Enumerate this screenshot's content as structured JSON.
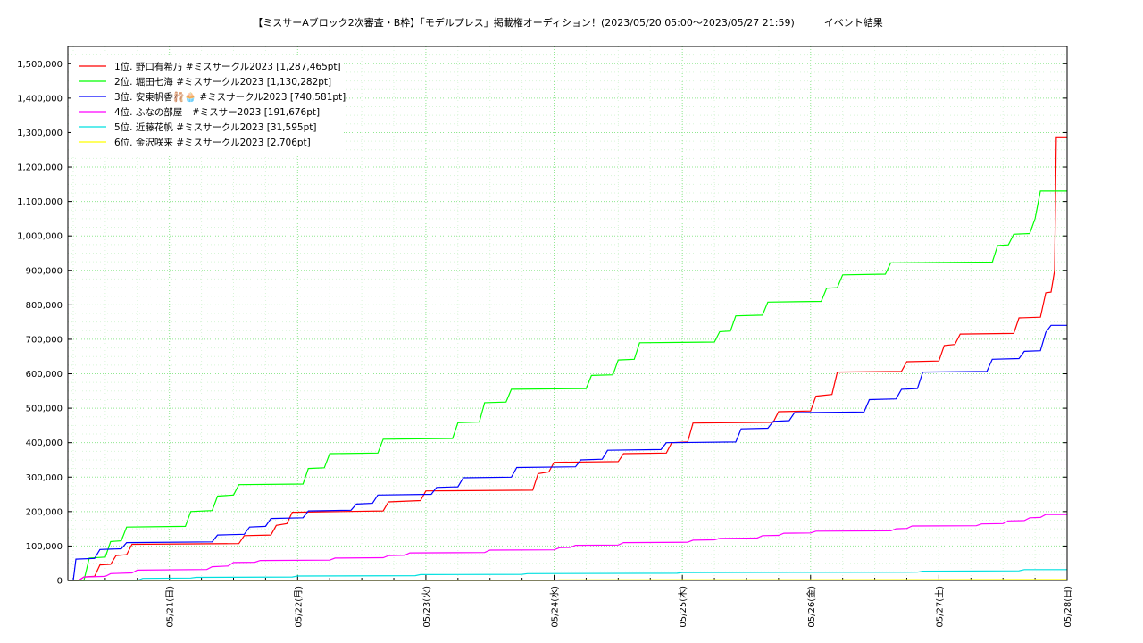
{
  "chart_data": {
    "type": "line",
    "title": "【ミスサーAブロック2次審査・B枠】「モデルプレス」掲載権オーディション！(2023/05/20 05:00〜2023/05/27 21:59)　　　イベント結果",
    "xlabel": "",
    "ylabel": "",
    "x_range": [
      "2023-05-20 05:00",
      "2023-05-28 00:00"
    ],
    "ylim": [
      0,
      1550000
    ],
    "y_ticks": [
      0,
      100000,
      200000,
      300000,
      400000,
      500000,
      600000,
      700000,
      800000,
      900000,
      1000000,
      1100000,
      1200000,
      1300000,
      1400000,
      1500000
    ],
    "y_tick_labels": [
      "0",
      "100,000",
      "200,000",
      "300,000",
      "400,000",
      "500,000",
      "600,000",
      "700,000",
      "800,000",
      "900,000",
      "1,000,000",
      "1,100,000",
      "1,200,000",
      "1,300,000",
      "1,400,000",
      "1,500,000"
    ],
    "x_ticks": [
      "2023-05-21",
      "2023-05-22",
      "2023-05-23",
      "2023-05-24",
      "2023-05-25",
      "2023-05-26",
      "2023-05-27",
      "2023-05-28"
    ],
    "x_tick_labels": [
      "05/21(日)",
      "05/22(月)",
      "05/23(火)",
      "05/24(水)",
      "05/25(木)",
      "05/26(金)",
      "05/27(土)",
      "05/28(日)"
    ],
    "grid": true,
    "legend_position": "top-left",
    "series": [
      {
        "name": "1位. 野口有希乃 #ミスサークル2023 [1,287,465pt]",
        "color": "#ff0000",
        "points": [
          [
            "2023-05-20 05:00",
            0
          ],
          [
            "2023-05-20 07:00",
            0
          ],
          [
            "2023-05-20 08:00",
            10000
          ],
          [
            "2023-05-20 10:00",
            12000
          ],
          [
            "2023-05-20 11:00",
            45000
          ],
          [
            "2023-05-20 13:00",
            47000
          ],
          [
            "2023-05-20 14:00",
            72000
          ],
          [
            "2023-05-20 16:00",
            75000
          ],
          [
            "2023-05-20 17:00",
            105000
          ],
          [
            "2023-05-21 13:00",
            107000
          ],
          [
            "2023-05-21 14:00",
            130000
          ],
          [
            "2023-05-21 19:00",
            132000
          ],
          [
            "2023-05-21 20:00",
            160000
          ],
          [
            "2023-05-21 22:00",
            165000
          ],
          [
            "2023-05-21 23:00",
            198000
          ],
          [
            "2023-05-22 16:00",
            202000
          ],
          [
            "2023-05-22 17:00",
            228000
          ],
          [
            "2023-05-22 23:00",
            232000
          ],
          [
            "2023-05-23 00:00",
            260000
          ],
          [
            "2023-05-23 20:00",
            262000
          ],
          [
            "2023-05-23 21:00",
            310000
          ],
          [
            "2023-05-23 23:00",
            315000
          ],
          [
            "2023-05-24 00:00",
            343000
          ],
          [
            "2023-05-24 12:00",
            345000
          ],
          [
            "2023-05-24 13:00",
            368000
          ],
          [
            "2023-05-24 21:00",
            370000
          ],
          [
            "2023-05-24 22:00",
            400000
          ],
          [
            "2023-05-25 01:00",
            402000
          ],
          [
            "2023-05-25 02:00",
            457000
          ],
          [
            "2023-05-25 17:00",
            459000
          ],
          [
            "2023-05-25 18:00",
            490000
          ],
          [
            "2023-05-26 00:00",
            492000
          ],
          [
            "2023-05-26 01:00",
            535000
          ],
          [
            "2023-05-26 04:00",
            540000
          ],
          [
            "2023-05-26 05:00",
            605000
          ],
          [
            "2023-05-26 17:00",
            607000
          ],
          [
            "2023-05-26 18:00",
            635000
          ],
          [
            "2023-05-27 00:00",
            637000
          ],
          [
            "2023-05-27 01:00",
            682000
          ],
          [
            "2023-05-27 03:00",
            685000
          ],
          [
            "2023-05-27 04:00",
            715000
          ],
          [
            "2023-05-27 14:00",
            717000
          ],
          [
            "2023-05-27 15:00",
            762000
          ],
          [
            "2023-05-27 19:00",
            764000
          ],
          [
            "2023-05-27 20:00",
            835000
          ],
          [
            "2023-05-27 21:00",
            837000
          ],
          [
            "2023-05-27 21:40",
            900000
          ],
          [
            "2023-05-27 21:59",
            1287465
          ],
          [
            "2023-05-28 00:00",
            1287465
          ]
        ]
      },
      {
        "name": "2位. 堀田七海 #ミスサークル2023 [1,130,282pt]",
        "color": "#00ff00",
        "points": [
          [
            "2023-05-20 05:00",
            0
          ],
          [
            "2023-05-20 08:00",
            0
          ],
          [
            "2023-05-20 09:00",
            65000
          ],
          [
            "2023-05-20 12:00",
            68000
          ],
          [
            "2023-05-20 13:00",
            113000
          ],
          [
            "2023-05-20 15:00",
            115000
          ],
          [
            "2023-05-20 16:00",
            155000
          ],
          [
            "2023-05-21 03:00",
            157000
          ],
          [
            "2023-05-21 04:00",
            200000
          ],
          [
            "2023-05-21 08:00",
            203000
          ],
          [
            "2023-05-21 09:00",
            245000
          ],
          [
            "2023-05-21 12:00",
            248000
          ],
          [
            "2023-05-21 13:00",
            278000
          ],
          [
            "2023-05-22 01:00",
            280000
          ],
          [
            "2023-05-22 02:00",
            325000
          ],
          [
            "2023-05-22 05:00",
            327000
          ],
          [
            "2023-05-22 06:00",
            368000
          ],
          [
            "2023-05-22 15:00",
            370000
          ],
          [
            "2023-05-22 16:00",
            410000
          ],
          [
            "2023-05-23 05:00",
            412000
          ],
          [
            "2023-05-23 06:00",
            458000
          ],
          [
            "2023-05-23 10:00",
            460000
          ],
          [
            "2023-05-23 11:00",
            516000
          ],
          [
            "2023-05-23 15:00",
            518000
          ],
          [
            "2023-05-23 16:00",
            555000
          ],
          [
            "2023-05-24 06:00",
            557000
          ],
          [
            "2023-05-24 07:00",
            595000
          ],
          [
            "2023-05-24 11:00",
            597000
          ],
          [
            "2023-05-24 12:00",
            640000
          ],
          [
            "2023-05-24 15:00",
            642000
          ],
          [
            "2023-05-24 16:00",
            690000
          ],
          [
            "2023-05-25 06:00",
            692000
          ],
          [
            "2023-05-25 07:00",
            722000
          ],
          [
            "2023-05-25 09:00",
            724000
          ],
          [
            "2023-05-25 10:00",
            768000
          ],
          [
            "2023-05-25 15:00",
            770000
          ],
          [
            "2023-05-25 16:00",
            808000
          ],
          [
            "2023-05-26 02:00",
            810000
          ],
          [
            "2023-05-26 03:00",
            848000
          ],
          [
            "2023-05-26 05:00",
            850000
          ],
          [
            "2023-05-26 06:00",
            887000
          ],
          [
            "2023-05-26 14:00",
            889000
          ],
          [
            "2023-05-26 15:00",
            922000
          ],
          [
            "2023-05-27 10:00",
            924000
          ],
          [
            "2023-05-27 11:00",
            972000
          ],
          [
            "2023-05-27 13:00",
            974000
          ],
          [
            "2023-05-27 14:00",
            1005000
          ],
          [
            "2023-05-27 17:00",
            1007000
          ],
          [
            "2023-05-27 18:00",
            1050000
          ],
          [
            "2023-05-27 19:00",
            1130282
          ],
          [
            "2023-05-28 00:00",
            1130282
          ]
        ]
      },
      {
        "name": "3位. 安東帆香🩰🧁 #ミスサークル2023 [740,581pt]",
        "color": "#0000ff",
        "points": [
          [
            "2023-05-20 05:00",
            0
          ],
          [
            "2023-05-20 06:00",
            0
          ],
          [
            "2023-05-20 06:30",
            62000
          ],
          [
            "2023-05-20 10:00",
            64000
          ],
          [
            "2023-05-20 11:00",
            90000
          ],
          [
            "2023-05-20 15:00",
            92000
          ],
          [
            "2023-05-20 16:00",
            110000
          ],
          [
            "2023-05-21 08:00",
            112000
          ],
          [
            "2023-05-21 09:00",
            132000
          ],
          [
            "2023-05-21 14:00",
            134000
          ],
          [
            "2023-05-21 15:00",
            155000
          ],
          [
            "2023-05-21 18:00",
            157000
          ],
          [
            "2023-05-21 19:00",
            180000
          ],
          [
            "2023-05-22 01:00",
            182000
          ],
          [
            "2023-05-22 02:00",
            202000
          ],
          [
            "2023-05-22 10:00",
            204000
          ],
          [
            "2023-05-22 11:00",
            222000
          ],
          [
            "2023-05-22 14:00",
            224000
          ],
          [
            "2023-05-22 15:00",
            248000
          ],
          [
            "2023-05-23 01:00",
            250000
          ],
          [
            "2023-05-23 02:00",
            270000
          ],
          [
            "2023-05-23 06:00",
            272000
          ],
          [
            "2023-05-23 07:00",
            298000
          ],
          [
            "2023-05-23 16:00",
            300000
          ],
          [
            "2023-05-23 17:00",
            328000
          ],
          [
            "2023-05-24 04:00",
            330000
          ],
          [
            "2023-05-24 05:00",
            350000
          ],
          [
            "2023-05-24 09:00",
            352000
          ],
          [
            "2023-05-24 10:00",
            378000
          ],
          [
            "2023-05-24 20:00",
            380000
          ],
          [
            "2023-05-24 21:00",
            400000
          ],
          [
            "2023-05-25 10:00",
            402000
          ],
          [
            "2023-05-25 11:00",
            440000
          ],
          [
            "2023-05-25 16:00",
            442000
          ],
          [
            "2023-05-25 17:00",
            462000
          ],
          [
            "2023-05-25 20:00",
            464000
          ],
          [
            "2023-05-25 21:00",
            487000
          ],
          [
            "2023-05-26 10:00",
            489000
          ],
          [
            "2023-05-26 11:00",
            525000
          ],
          [
            "2023-05-26 16:00",
            527000
          ],
          [
            "2023-05-26 17:00",
            555000
          ],
          [
            "2023-05-26 20:00",
            557000
          ],
          [
            "2023-05-26 21:00",
            605000
          ],
          [
            "2023-05-27 09:00",
            607000
          ],
          [
            "2023-05-27 10:00",
            642000
          ],
          [
            "2023-05-27 15:00",
            644000
          ],
          [
            "2023-05-27 16:00",
            665000
          ],
          [
            "2023-05-27 19:00",
            667000
          ],
          [
            "2023-05-27 20:00",
            720000
          ],
          [
            "2023-05-27 21:00",
            740581
          ],
          [
            "2023-05-28 00:00",
            740581
          ]
        ]
      },
      {
        "name": "4位. ふなの部屋　#ミスサー2023 [191,676pt]",
        "color": "#ff00ff",
        "points": [
          [
            "2023-05-20 05:00",
            0
          ],
          [
            "2023-05-20 07:00",
            0
          ],
          [
            "2023-05-20 08:00",
            10000
          ],
          [
            "2023-05-20 12:00",
            12000
          ],
          [
            "2023-05-20 13:00",
            20000
          ],
          [
            "2023-05-20 17:00",
            22000
          ],
          [
            "2023-05-20 18:00",
            30000
          ],
          [
            "2023-05-21 07:00",
            32000
          ],
          [
            "2023-05-21 08:00",
            40000
          ],
          [
            "2023-05-21 11:00",
            42000
          ],
          [
            "2023-05-21 12:00",
            52000
          ],
          [
            "2023-05-21 16:00",
            53000
          ],
          [
            "2023-05-21 17:00",
            58000
          ],
          [
            "2023-05-22 06:00",
            59000
          ],
          [
            "2023-05-22 07:00",
            65000
          ],
          [
            "2023-05-22 16:00",
            66000
          ],
          [
            "2023-05-22 17:00",
            72000
          ],
          [
            "2023-05-22 20:00",
            73000
          ],
          [
            "2023-05-22 21:00",
            80000
          ],
          [
            "2023-05-23 11:00",
            81000
          ],
          [
            "2023-05-23 12:00",
            88000
          ],
          [
            "2023-05-24 00:00",
            89000
          ],
          [
            "2023-05-24 01:00",
            95000
          ],
          [
            "2023-05-24 03:00",
            96000
          ],
          [
            "2023-05-24 04:00",
            102000
          ],
          [
            "2023-05-24 12:00",
            103000
          ],
          [
            "2023-05-24 13:00",
            110000
          ],
          [
            "2023-05-25 01:00",
            111000
          ],
          [
            "2023-05-25 02:00",
            117000
          ],
          [
            "2023-05-25 06:00",
            118000
          ],
          [
            "2023-05-25 07:00",
            122000
          ],
          [
            "2023-05-25 14:00",
            123000
          ],
          [
            "2023-05-25 15:00",
            130000
          ],
          [
            "2023-05-25 18:00",
            131000
          ],
          [
            "2023-05-25 19:00",
            137000
          ],
          [
            "2023-05-26 00:00",
            138000
          ],
          [
            "2023-05-26 01:00",
            143000
          ],
          [
            "2023-05-26 15:00",
            144000
          ],
          [
            "2023-05-26 16:00",
            150000
          ],
          [
            "2023-05-26 18:00",
            151000
          ],
          [
            "2023-05-26 19:00",
            158000
          ],
          [
            "2023-05-27 07:00",
            159000
          ],
          [
            "2023-05-27 08:00",
            164000
          ],
          [
            "2023-05-27 12:00",
            165000
          ],
          [
            "2023-05-27 13:00",
            173000
          ],
          [
            "2023-05-27 16:00",
            174000
          ],
          [
            "2023-05-27 17:00",
            182000
          ],
          [
            "2023-05-27 19:00",
            183000
          ],
          [
            "2023-05-27 20:00",
            191676
          ],
          [
            "2023-05-28 00:00",
            191676
          ]
        ]
      },
      {
        "name": "5位. 近藤花帆 #ミスサークル2023 [31,595pt]",
        "color": "#00e0e0",
        "points": [
          [
            "2023-05-20 05:00",
            0
          ],
          [
            "2023-05-20 18:00",
            0
          ],
          [
            "2023-05-20 19:00",
            6000
          ],
          [
            "2023-05-21 04:00",
            7000
          ],
          [
            "2023-05-21 05:00",
            9000
          ],
          [
            "2023-05-21 23:00",
            10000
          ],
          [
            "2023-05-22 00:00",
            13000
          ],
          [
            "2023-05-22 22:00",
            14000
          ],
          [
            "2023-05-22 23:00",
            17000
          ],
          [
            "2023-05-23 18:00",
            18000
          ],
          [
            "2023-05-23 19:00",
            20000
          ],
          [
            "2023-05-24 23:00",
            21000
          ],
          [
            "2023-05-25 00:00",
            23000
          ],
          [
            "2023-05-26 20:00",
            24000
          ],
          [
            "2023-05-26 21:00",
            27000
          ],
          [
            "2023-05-27 15:00",
            28000
          ],
          [
            "2023-05-27 16:00",
            31595
          ],
          [
            "2023-05-28 00:00",
            31595
          ]
        ]
      },
      {
        "name": "6位. 金沢咲来 #ミスサークル2023 [2,706pt]",
        "color": "#ffff00",
        "points": [
          [
            "2023-05-20 05:00",
            0
          ],
          [
            "2023-05-24 00:00",
            0
          ],
          [
            "2023-05-24 01:00",
            1500
          ],
          [
            "2023-05-25 12:00",
            2000
          ],
          [
            "2023-05-27 20:00",
            2706
          ],
          [
            "2023-05-28 00:00",
            2706
          ]
        ]
      }
    ]
  }
}
